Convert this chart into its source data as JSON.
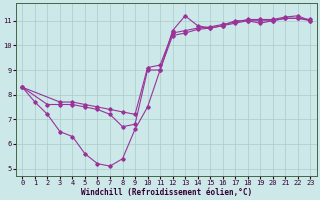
{
  "xlabel": "Windchill (Refroidissement éolien,°C)",
  "bg_color": "#cce8e8",
  "grid_color": "#aacccc",
  "line_color": "#993399",
  "xlim": [
    -0.5,
    23.5
  ],
  "ylim": [
    4.7,
    11.7
  ],
  "yticks": [
    5,
    6,
    7,
    8,
    9,
    10,
    11
  ],
  "xticks": [
    0,
    1,
    2,
    3,
    4,
    5,
    6,
    7,
    8,
    9,
    10,
    11,
    12,
    13,
    14,
    15,
    16,
    17,
    18,
    19,
    20,
    21,
    22,
    23
  ],
  "line1_x": [
    0,
    1,
    2,
    3,
    4,
    5,
    6,
    7,
    8,
    9,
    10,
    11,
    12,
    13,
    14,
    15,
    16,
    17,
    18,
    19,
    20,
    21,
    22,
    23
  ],
  "line1_y": [
    8.3,
    7.7,
    7.2,
    6.5,
    6.3,
    5.6,
    5.2,
    5.1,
    5.4,
    6.6,
    7.5,
    9.0,
    10.6,
    11.2,
    10.8,
    10.7,
    10.8,
    11.0,
    11.0,
    10.9,
    11.0,
    11.1,
    11.1,
    11.0
  ],
  "line2_x": [
    0,
    2,
    3,
    4,
    5,
    6,
    7,
    8,
    9,
    10,
    11,
    12,
    13,
    14,
    15,
    16,
    17,
    18,
    19,
    20,
    21,
    22,
    23
  ],
  "line2_y": [
    8.3,
    7.6,
    7.6,
    7.6,
    7.5,
    7.4,
    7.2,
    6.7,
    6.8,
    9.0,
    9.0,
    10.4,
    10.5,
    10.65,
    10.7,
    10.8,
    10.9,
    11.0,
    11.0,
    11.0,
    11.1,
    11.1,
    11.05
  ],
  "line3_x": [
    0,
    3,
    4,
    5,
    6,
    7,
    8,
    9,
    10,
    11,
    12,
    13,
    14,
    15,
    16,
    17,
    18,
    19,
    20,
    21,
    22,
    23
  ],
  "line3_y": [
    8.3,
    7.7,
    7.7,
    7.6,
    7.5,
    7.4,
    7.3,
    7.2,
    9.1,
    9.2,
    10.5,
    10.6,
    10.7,
    10.75,
    10.85,
    10.95,
    11.05,
    11.05,
    11.05,
    11.15,
    11.2,
    11.0
  ]
}
